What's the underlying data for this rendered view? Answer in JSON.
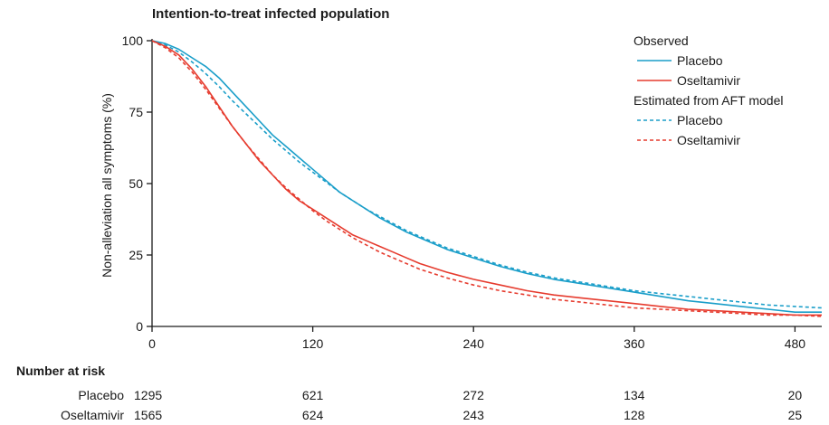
{
  "chart_data": {
    "type": "line",
    "title": "Intention-to-treat infected population",
    "ylabel": "Non-alleviation all symptoms (%)",
    "xlabel": "",
    "xlim": [
      0,
      500
    ],
    "ylim": [
      0,
      100
    ],
    "xticks": [
      0,
      120,
      240,
      360,
      480
    ],
    "yticks": [
      0,
      25,
      50,
      75,
      100
    ],
    "grid": false,
    "legend": {
      "placement": "top-right",
      "groups": [
        {
          "heading": "Observed",
          "entries": [
            "Placebo",
            "Oseltamivir"
          ]
        },
        {
          "heading": "Estimated from AFT model",
          "entries": [
            "Placebo",
            "Oseltamivir"
          ]
        }
      ]
    },
    "colors": {
      "placebo": "#1a9ec9",
      "oseltamivir": "#e63b2e"
    },
    "series": [
      {
        "name": "Placebo",
        "group": "Observed",
        "style": "solid",
        "color": "#1a9ec9",
        "x": [
          0,
          10,
          20,
          30,
          40,
          50,
          60,
          70,
          80,
          90,
          100,
          110,
          120,
          130,
          140,
          150,
          160,
          170,
          180,
          190,
          200,
          220,
          240,
          260,
          280,
          300,
          320,
          340,
          360,
          380,
          400,
          420,
          440,
          460,
          480,
          500
        ],
        "y": [
          100,
          99,
          97,
          94,
          91,
          87,
          82,
          77,
          72,
          67,
          63,
          59,
          55,
          51,
          47,
          44,
          41,
          38,
          35.5,
          33,
          31,
          27,
          24,
          21,
          18.5,
          16.5,
          15,
          13.5,
          12,
          10.5,
          9,
          8,
          7,
          6,
          5,
          5
        ]
      },
      {
        "name": "Oseltamivir",
        "group": "Observed",
        "style": "solid",
        "color": "#e63b2e",
        "x": [
          0,
          10,
          20,
          30,
          40,
          50,
          60,
          70,
          80,
          90,
          100,
          110,
          120,
          130,
          140,
          150,
          160,
          170,
          180,
          190,
          200,
          220,
          240,
          260,
          280,
          300,
          320,
          340,
          360,
          380,
          400,
          420,
          440,
          460,
          480,
          500
        ],
        "y": [
          100,
          98,
          95,
          90,
          84,
          77,
          70,
          64,
          58,
          53,
          48,
          44,
          41,
          38,
          35,
          32,
          30,
          28,
          26,
          24,
          22,
          19,
          16.5,
          14.5,
          12.5,
          11,
          10,
          9,
          8,
          7,
          6,
          5.5,
          5,
          4.5,
          4,
          4
        ]
      },
      {
        "name": "Placebo",
        "group": "Estimated from AFT model",
        "style": "dashed",
        "color": "#1a9ec9",
        "x": [
          0,
          10,
          20,
          30,
          40,
          50,
          60,
          70,
          80,
          90,
          100,
          110,
          120,
          130,
          140,
          150,
          160,
          170,
          180,
          190,
          200,
          220,
          240,
          260,
          280,
          300,
          320,
          340,
          360,
          380,
          400,
          420,
          440,
          460,
          480,
          500
        ],
        "y": [
          100,
          98.5,
          96,
          92.5,
          88.5,
          84,
          79,
          74.5,
          70,
          65.5,
          61.5,
          57.5,
          54,
          50.5,
          47,
          44,
          41,
          38.5,
          36,
          33.5,
          31.5,
          27.5,
          24.5,
          21.5,
          19,
          17,
          15.5,
          14,
          12.5,
          11.5,
          10.5,
          9.5,
          8.5,
          7.5,
          7,
          6.5
        ]
      },
      {
        "name": "Oseltamivir",
        "group": "Estimated from AFT model",
        "style": "dashed",
        "color": "#e63b2e",
        "x": [
          0,
          10,
          20,
          30,
          40,
          50,
          60,
          70,
          80,
          90,
          100,
          110,
          120,
          130,
          140,
          150,
          160,
          170,
          180,
          190,
          200,
          220,
          240,
          260,
          280,
          300,
          320,
          340,
          360,
          380,
          400,
          420,
          440,
          460,
          480,
          500
        ],
        "y": [
          100,
          97.5,
          94,
          89,
          83,
          76.5,
          70,
          64,
          58.5,
          53,
          48.5,
          44.5,
          40.5,
          37,
          34,
          31,
          28.5,
          26,
          24,
          22,
          20,
          17,
          14.5,
          12.5,
          11,
          9.5,
          8.5,
          7.5,
          6.5,
          6,
          5.5,
          5,
          4.5,
          4,
          4,
          3.5
        ]
      }
    ],
    "risk_table": {
      "heading": "Number at risk",
      "times": [
        0,
        120,
        240,
        360,
        480
      ],
      "rows": [
        {
          "label": "Placebo",
          "values": [
            "1295",
            "621",
            "272",
            "134",
            "20"
          ]
        },
        {
          "label": "Oseltamivir",
          "values": [
            "1565",
            "624",
            "243",
            "128",
            "25"
          ]
        }
      ]
    }
  }
}
